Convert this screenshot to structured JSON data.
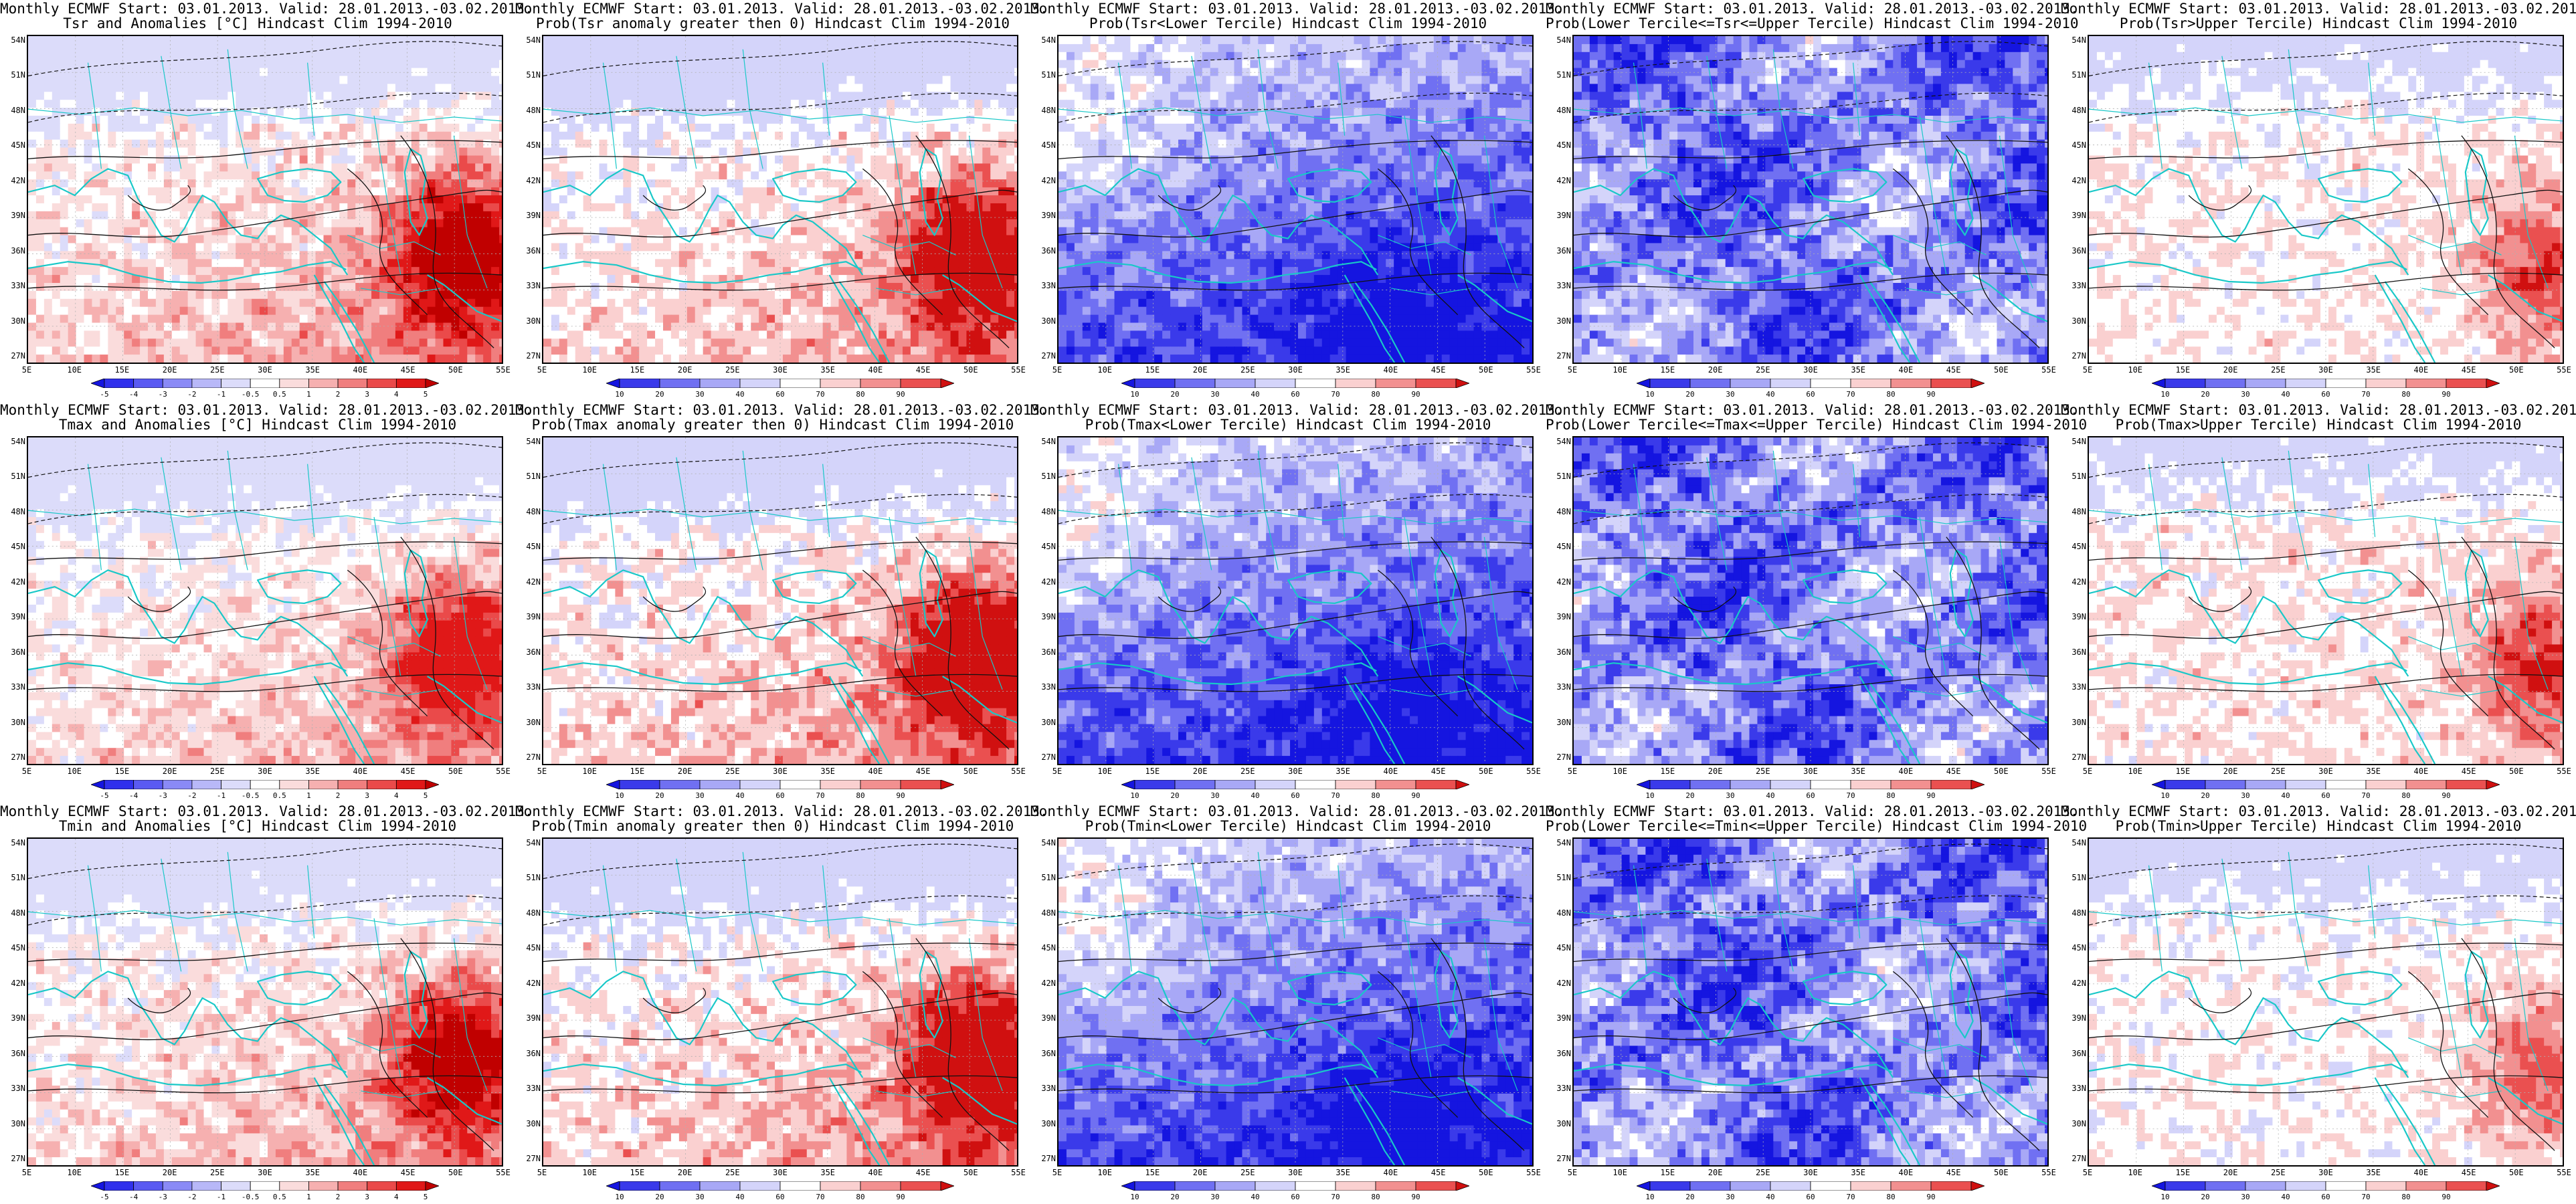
{
  "lat_labels": [
    "54N",
    "51N",
    "48N",
    "45N",
    "42N",
    "39N",
    "36N",
    "33N",
    "30N",
    "27N"
  ],
  "lon_labels": [
    "5E",
    "10E",
    "15E",
    "20E",
    "25E",
    "30E",
    "35E",
    "40E",
    "45E",
    "50E",
    "55E"
  ],
  "anomaly_scale": {
    "labels": [
      "-5",
      "-4",
      "-3",
      "-2",
      "-1",
      "-0.5",
      "0.5",
      "1",
      "2",
      "3",
      "4",
      "5"
    ],
    "colors": [
      "#1515e0",
      "#3030ec",
      "#5a5af2",
      "#8a8af6",
      "#b8b8f8",
      "#dcdcfa",
      "#ffffff",
      "#fadcdc",
      "#f6b0b0",
      "#f07e7e",
      "#ea4a4a",
      "#e01818",
      "#c00000"
    ]
  },
  "prob_scale": {
    "labels": [
      "10",
      "20",
      "30",
      "40",
      "60",
      "70",
      "80",
      "90"
    ],
    "colors": [
      "#1515e0",
      "#3a3aea",
      "#7070f2",
      "#a8a8f6",
      "#d4d4fa",
      "#ffffff",
      "#fad0d0",
      "#f29090",
      "#ea5050",
      "#d01010"
    ]
  },
  "panels": [
    {
      "id": "r1c1",
      "line1": "Monthly ECMWF Start: 03.01.2013. Valid: 28.01.2013.-03.02.2013.",
      "line2": "Tsr and Anomalies [°C] Hindcast Clim 1994-2010",
      "scale": "anomaly",
      "field": "warm",
      "intensity": 0.75
    },
    {
      "id": "r1c2",
      "line1": "Monthly ECMWF Start: 03.01.2013. Valid: 28.01.2013.-03.02.2013.",
      "line2": "Prob(Tsr anomaly greater then 0) Hindcast Clim 1994-2010",
      "scale": "prob",
      "field": "warm",
      "intensity": 0.8
    },
    {
      "id": "r1c3",
      "line1": "Monthly ECMWF Start: 03.01.2013. Valid: 28.01.2013.-03.02.2013.",
      "line2": "Prob(Tsr<Lower Tercile) Hindcast Clim 1994-2010",
      "scale": "prob",
      "field": "lower",
      "intensity": 0.85
    },
    {
      "id": "r1c4",
      "line1": "Monthly ECMWF Start: 03.01.2013. Valid: 28.01.2013.-03.02.2013.",
      "line2": "Prob(Lower Tercile<=Tsr<=Upper Tercile) Hindcast Clim 1994-2010",
      "scale": "prob",
      "field": "middle",
      "intensity": 0.8
    },
    {
      "id": "r1c5",
      "line1": "Monthly ECMWF Start: 03.01.2013. Valid: 28.01.2013.-03.02.2013.",
      "line2": "Prob(Tsr>Upper Tercile) Hindcast Clim 1994-2010",
      "scale": "prob",
      "field": "upper",
      "intensity": 0.65
    },
    {
      "id": "r2c1",
      "line1": "Monthly ECMWF Start: 03.01.2013. Valid: 28.01.2013.-03.02.2013.",
      "line2": "Tmax and Anomalies [°C] Hindcast Clim 1994-2010",
      "scale": "anomaly",
      "field": "warm",
      "intensity": 0.65
    },
    {
      "id": "r2c2",
      "line1": "Monthly ECMWF Start: 03.01.2013. Valid: 28.01.2013.-03.02.2013.",
      "line2": "Prob(Tmax anomaly greater then 0) Hindcast Clim 1994-2010",
      "scale": "prob",
      "field": "warm",
      "intensity": 0.85
    },
    {
      "id": "r2c3",
      "line1": "Monthly ECMWF Start: 03.01.2013. Valid: 28.01.2013.-03.02.2013.",
      "line2": "Prob(Tmax<Lower Tercile) Hindcast Clim 1994-2010",
      "scale": "prob",
      "field": "lower",
      "intensity": 0.9
    },
    {
      "id": "r2c4",
      "line1": "Monthly ECMWF Start: 03.01.2013. Valid: 28.01.2013.-03.02.2013.",
      "line2": "Prob(Lower Tercile<=Tmax<=Upper Tercile) Hindcast Clim 1994-2010",
      "scale": "prob",
      "field": "middle",
      "intensity": 0.75
    },
    {
      "id": "r2c5",
      "line1": "Monthly ECMWF Start: 03.01.2013. Valid: 28.01.2013.-03.02.2013.",
      "line2": "Prob(Tmax>Upper Tercile) Hindcast Clim 1994-2010",
      "scale": "prob",
      "field": "upper",
      "intensity": 0.7
    },
    {
      "id": "r3c1",
      "line1": "Monthly ECMWF Start: 03.01.2013. Valid: 28.01.2013.-03.02.2013.",
      "line2": "Tmin and Anomalies [°C] Hindcast Clim 1994-2010",
      "scale": "anomaly",
      "field": "warm",
      "intensity": 0.7
    },
    {
      "id": "r3c2",
      "line1": "Monthly ECMWF Start: 03.01.2013. Valid: 28.01.2013.-03.02.2013.",
      "line2": "Prob(Tmin anomaly greater then 0) Hindcast Clim 1994-2010",
      "scale": "prob",
      "field": "warm",
      "intensity": 0.85
    },
    {
      "id": "r3c3",
      "line1": "Monthly ECMWF Start: 03.01.2013. Valid: 28.01.2013.-03.02.2013.",
      "line2": "Prob(Tmin<Lower Tercile) Hindcast Clim 1994-2010",
      "scale": "prob",
      "field": "lower",
      "intensity": 0.8
    },
    {
      "id": "r3c4",
      "line1": "Monthly ECMWF Start: 03.01.2013. Valid: 28.01.2013.-03.02.2013.",
      "line2": "Prob(Lower Tercile<=Tmin<=Upper Tercile) Hindcast Clim 1994-2010",
      "scale": "prob",
      "field": "middle",
      "intensity": 0.75
    },
    {
      "id": "r3c5",
      "line1": "Monthly ECMWF Start: 03.01.2013. Valid: 28.01.2013.-03.02.2013.",
      "line2": "Prob(Tmin>Upper Tercile) Hindcast Clim 1994-2010",
      "scale": "prob",
      "field": "upper",
      "intensity": 0.6
    }
  ]
}
